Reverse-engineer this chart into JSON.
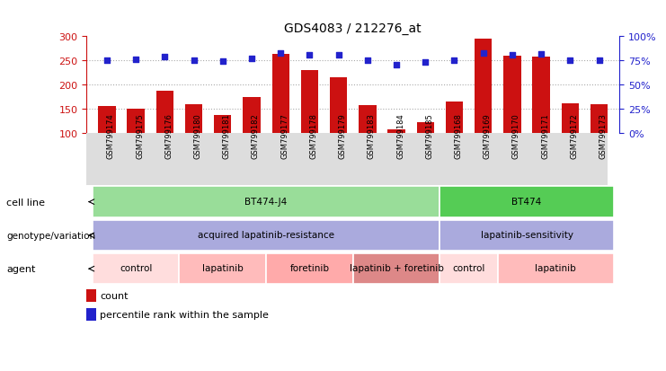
{
  "title": "GDS4083 / 212276_at",
  "samples": [
    "GSM799174",
    "GSM799175",
    "GSM799176",
    "GSM799180",
    "GSM799181",
    "GSM799182",
    "GSM799177",
    "GSM799178",
    "GSM799179",
    "GSM799183",
    "GSM799184",
    "GSM799185",
    "GSM799168",
    "GSM799169",
    "GSM799170",
    "GSM799171",
    "GSM799172",
    "GSM799173"
  ],
  "bar_values": [
    155,
    151,
    188,
    160,
    138,
    174,
    263,
    230,
    215,
    157,
    108,
    122,
    165,
    295,
    260,
    258,
    161,
    160
  ],
  "dot_values": [
    250,
    253,
    258,
    251,
    248,
    255,
    265,
    261,
    261,
    251,
    241,
    246,
    251,
    265,
    262,
    263,
    251,
    251
  ],
  "ymin": 100,
  "ymax": 300,
  "yticks": [
    100,
    150,
    200,
    250,
    300
  ],
  "y2ticks": [
    0,
    25,
    50,
    75,
    100
  ],
  "y2labels": [
    "0%",
    "25%",
    "50%",
    "75%",
    "100%"
  ],
  "bar_color": "#cc1111",
  "dot_color": "#2222cc",
  "grid_color": "#aaaaaa",
  "cell_line_groups": [
    {
      "label": "BT474-J4",
      "start": 0,
      "end": 11,
      "color": "#99dd99"
    },
    {
      "label": "BT474",
      "start": 12,
      "end": 17,
      "color": "#55cc55"
    }
  ],
  "genotype_groups": [
    {
      "label": "acquired lapatinib-resistance",
      "start": 0,
      "end": 11,
      "color": "#aaaadd"
    },
    {
      "label": "lapatinib-sensitivity",
      "start": 12,
      "end": 17,
      "color": "#aaaadd"
    }
  ],
  "agent_groups": [
    {
      "label": "control",
      "start": 0,
      "end": 2,
      "color": "#ffdddd"
    },
    {
      "label": "lapatinib",
      "start": 3,
      "end": 5,
      "color": "#ffbbbb"
    },
    {
      "label": "foretinib",
      "start": 6,
      "end": 8,
      "color": "#ffaaaa"
    },
    {
      "label": "lapatinib + foretinib",
      "start": 9,
      "end": 11,
      "color": "#dd8888"
    },
    {
      "label": "control",
      "start": 12,
      "end": 13,
      "color": "#ffdddd"
    },
    {
      "label": "lapatinib",
      "start": 14,
      "end": 17,
      "color": "#ffbbbb"
    }
  ]
}
